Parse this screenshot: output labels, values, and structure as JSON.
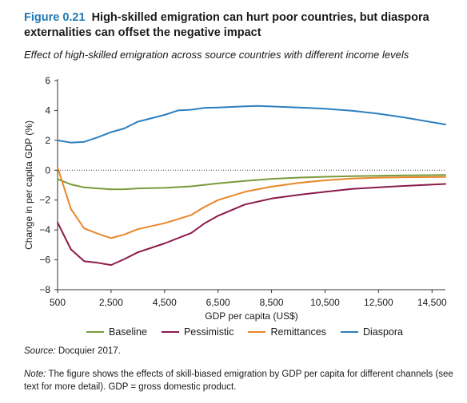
{
  "figure": {
    "number": "Figure 0.21",
    "title": "High-skilled emigration can hurt poor countries, but diaspora externalities can offset the negative impact",
    "subtitle": "Effect of high-skilled emigration across source countries with different income levels"
  },
  "source": {
    "label": "Source:",
    "text": " Docquier 2017."
  },
  "note": {
    "label": "Note:",
    "text": " The figure shows the effects of skill-biased emigration by GDP per capita for different channels (see text for more detail). GDP = gross domestic product."
  },
  "colors": {
    "baseline": "#7a9a3a",
    "pessimistic": "#8b1a4a",
    "remittances": "#e8872a",
    "diaspora": "#2b7fc0"
  },
  "chart_data": {
    "type": "line",
    "xlabel": "GDP per capita (US$)",
    "ylabel": "Change in per capita GDP (%)",
    "xlim": [
      500,
      15000
    ],
    "ylim": [
      -8,
      6
    ],
    "xticks": [
      500,
      2500,
      4500,
      6500,
      8500,
      10500,
      12500,
      14500
    ],
    "xtick_labels": [
      "500",
      "2,500",
      "4,500",
      "6,500",
      "8,500",
      "10,500",
      "12,500",
      "14,500"
    ],
    "yticks": [
      -8,
      -6,
      -4,
      -2,
      0,
      2,
      4,
      6
    ],
    "ytick_labels": [
      "−8",
      "−6",
      "−4",
      "−2",
      "0",
      "2",
      "4",
      "6"
    ],
    "zero_line": "dotted",
    "legend_position": "bottom",
    "series": [
      {
        "name": "Baseline",
        "color": "#7a9a3a",
        "x": [
          500,
          1000,
          1500,
          2000,
          2500,
          3000,
          3500,
          4500,
          5500,
          6500,
          7500,
          8500,
          9500,
          10500,
          11500,
          12500,
          13500,
          15000
        ],
        "y": [
          -0.6,
          -0.95,
          -1.15,
          -1.22,
          -1.28,
          -1.27,
          -1.22,
          -1.18,
          -1.08,
          -0.88,
          -0.72,
          -0.58,
          -0.5,
          -0.44,
          -0.4,
          -0.37,
          -0.35,
          -0.32
        ]
      },
      {
        "name": "Pessimistic",
        "color": "#8b1a4a",
        "x": [
          500,
          1000,
          1500,
          2000,
          2500,
          3000,
          3500,
          4500,
          5500,
          6000,
          6500,
          7500,
          8500,
          9500,
          10500,
          11500,
          12500,
          13500,
          15000
        ],
        "y": [
          -3.5,
          -5.3,
          -6.1,
          -6.2,
          -6.35,
          -5.95,
          -5.5,
          -4.9,
          -4.2,
          -3.55,
          -3.05,
          -2.3,
          -1.9,
          -1.65,
          -1.45,
          -1.25,
          -1.15,
          -1.05,
          -0.92
        ]
      },
      {
        "name": "Remittances",
        "color": "#e8872a",
        "x": [
          500,
          1000,
          1500,
          2000,
          2500,
          3000,
          3500,
          4500,
          5500,
          6000,
          6500,
          7500,
          8500,
          9500,
          10500,
          11500,
          12500,
          13500,
          15000
        ],
        "y": [
          0.2,
          -2.6,
          -3.9,
          -4.25,
          -4.55,
          -4.3,
          -3.95,
          -3.55,
          -3.0,
          -2.45,
          -2.0,
          -1.45,
          -1.1,
          -0.85,
          -0.68,
          -0.56,
          -0.5,
          -0.47,
          -0.45
        ]
      },
      {
        "name": "Diaspora",
        "color": "#2b7fc0",
        "x": [
          500,
          1000,
          1500,
          2000,
          2500,
          3000,
          3500,
          4500,
          5000,
          5500,
          6000,
          6500,
          7500,
          8000,
          8500,
          9500,
          10500,
          11500,
          12500,
          13500,
          15000
        ],
        "y": [
          2.0,
          1.85,
          1.9,
          2.2,
          2.55,
          2.8,
          3.25,
          3.7,
          4.0,
          4.05,
          4.18,
          4.2,
          4.28,
          4.3,
          4.27,
          4.2,
          4.12,
          3.98,
          3.78,
          3.52,
          3.06
        ]
      }
    ]
  }
}
